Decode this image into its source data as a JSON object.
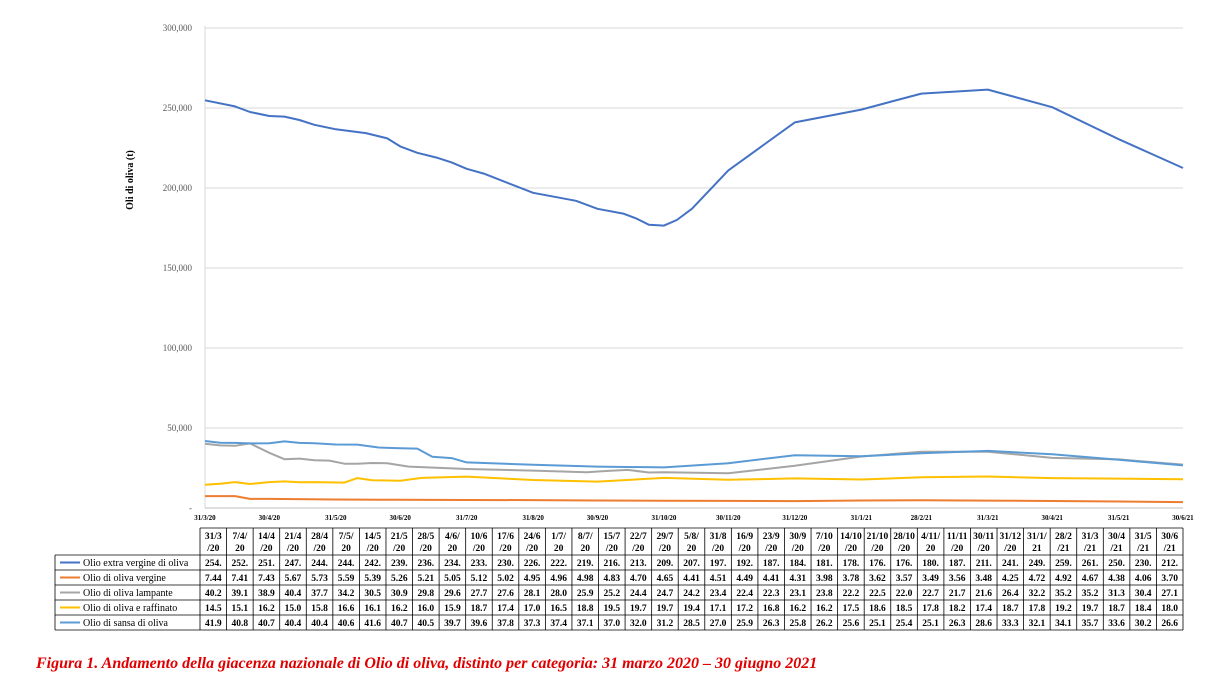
{
  "chart_data": {
    "type": "line",
    "ylabel": "Oli di oliva (t)",
    "ylim": [
      0,
      300000
    ],
    "yticks": [
      "-",
      "50,000",
      "100,000",
      "150,000",
      "200,000",
      "250,000",
      "300,000"
    ],
    "grid": true,
    "legend_placement": "data-table-below",
    "axis_ticks": [
      "31/3/20",
      "30/4/20",
      "31/5/20",
      "30/6/20",
      "31/7/20",
      "31/8/20",
      "30/9/20",
      "31/10/20",
      "30/11/20",
      "31/12/20",
      "31/1/21",
      "28/2/21",
      "31/3/21",
      "30/4/21",
      "31/5/21",
      "30/6/21"
    ],
    "table_headers": [
      [
        "31/3",
        "/20"
      ],
      [
        "7/4/",
        "20"
      ],
      [
        "14/4",
        "/20"
      ],
      [
        "21/4",
        "/20"
      ],
      [
        "28/4",
        "/20"
      ],
      [
        "7/5/",
        "20"
      ],
      [
        "14/5",
        "/20"
      ],
      [
        "21/5",
        "/20"
      ],
      [
        "28/5",
        "/20"
      ],
      [
        "4/6/",
        "20"
      ],
      [
        "10/6",
        "/20"
      ],
      [
        "17/6",
        "/20"
      ],
      [
        "24/6",
        "/20"
      ],
      [
        "1/7/",
        "20"
      ],
      [
        "8/7/",
        "20"
      ],
      [
        "15/7",
        "/20"
      ],
      [
        "22/7",
        "/20"
      ],
      [
        "29/7",
        "/20"
      ],
      [
        "5/8/",
        "20"
      ],
      [
        "31/8",
        "/20"
      ],
      [
        "16/9",
        "/20"
      ],
      [
        "23/9",
        "/20"
      ],
      [
        "30/9",
        "/20"
      ],
      [
        "7/10",
        "/20"
      ],
      [
        "14/10",
        "/20"
      ],
      [
        "21/10",
        "/20"
      ],
      [
        "28/10",
        "/20"
      ],
      [
        "4/11/",
        "20"
      ],
      [
        "11/11",
        "/20"
      ],
      [
        "30/11",
        "/20"
      ],
      [
        "31/12",
        "/20"
      ],
      [
        "31/1/",
        "21"
      ],
      [
        "28/2",
        "/21"
      ],
      [
        "31/3",
        "/21"
      ],
      [
        "30/4",
        "/21"
      ],
      [
        "31/5",
        "/21"
      ],
      [
        "30/6",
        "/21"
      ]
    ],
    "series": [
      {
        "name": "Olio extra vergine di oliva",
        "color": "#4472c4",
        "labels": [
          "254.",
          "252.",
          "251.",
          "247.",
          "244.",
          "244.",
          "242.",
          "239.",
          "236.",
          "234.",
          "233.",
          "230.",
          "226.",
          "222.",
          "219.",
          "216.",
          "213.",
          "209.",
          "207.",
          "197.",
          "192.",
          "187.",
          "184.",
          "181.",
          "178.",
          "176.",
          "176.",
          "180.",
          "187.",
          "211.",
          "241.",
          "249.",
          "259.",
          "261.",
          "250.",
          "230.",
          "212."
        ],
        "plot_points": [
          [
            "31/3/20",
            254800
          ],
          [
            "14/4/20",
            251000
          ],
          [
            "21/4/20",
            247500
          ],
          [
            "30/4/20",
            245000
          ],
          [
            "7/5/20",
            244600
          ],
          [
            "14/5/20",
            242500
          ],
          [
            "21/5/20",
            239500
          ],
          [
            "31/5/20",
            236700
          ],
          [
            "14/6/20",
            234300
          ],
          [
            "24/6/20",
            231000
          ],
          [
            "30/6/20",
            226000
          ],
          [
            "8/7/20",
            222000
          ],
          [
            "17/7/20",
            219000
          ],
          [
            "24/7/20",
            216000
          ],
          [
            "31/7/20",
            212000
          ],
          [
            "8/8/20",
            209000
          ],
          [
            "31/8/20",
            197000
          ],
          [
            "20/9/20",
            192000
          ],
          [
            "30/9/20",
            187000
          ],
          [
            "12/10/20",
            184000
          ],
          [
            "18/10/20",
            181000
          ],
          [
            "24/10/20",
            177000
          ],
          [
            "31/10/20",
            176500
          ],
          [
            "6/11/20",
            180000
          ],
          [
            "13/11/20",
            187000
          ],
          [
            "30/11/20",
            211000
          ],
          [
            "31/12/20",
            241000
          ],
          [
            "31/1/21",
            249000
          ],
          [
            "28/2/21",
            259000
          ],
          [
            "31/3/21",
            261500
          ],
          [
            "30/4/21",
            250500
          ],
          [
            "31/5/21",
            230500
          ],
          [
            "30/6/21",
            212500
          ]
        ]
      },
      {
        "name": "Olio di oliva vergine",
        "color": "#ed7d31",
        "labels": [
          "7.44",
          "7.41",
          "7.43",
          "5.67",
          "5.73",
          "5.59",
          "5.39",
          "5.26",
          "5.21",
          "5.05",
          "5.12",
          "5.02",
          "4.95",
          "4.96",
          "4.98",
          "4.83",
          "4.70",
          "4.65",
          "4.41",
          "4.51",
          "4.49",
          "4.41",
          "4.31",
          "3.98",
          "3.78",
          "3.62",
          "3.57",
          "3.49",
          "3.56",
          "3.48",
          "4.25",
          "4.72",
          "4.92",
          "4.67",
          "4.38",
          "4.06",
          "3.70"
        ],
        "plot_points": [
          [
            "31/3/20",
            7440
          ],
          [
            "14/4/20",
            7430
          ],
          [
            "21/4/20",
            5670
          ],
          [
            "30/4/20",
            5700
          ],
          [
            "31/5/20",
            5300
          ],
          [
            "30/6/20",
            5100
          ],
          [
            "31/7/20",
            5000
          ],
          [
            "31/8/20",
            4950
          ],
          [
            "30/9/20",
            4700
          ],
          [
            "31/10/20",
            4500
          ],
          [
            "30/11/20",
            4450
          ],
          [
            "31/12/20",
            4300
          ],
          [
            "31/1/21",
            4700
          ],
          [
            "28/2/21",
            4900
          ],
          [
            "31/3/21",
            4650
          ],
          [
            "30/4/21",
            4350
          ],
          [
            "31/5/21",
            4050
          ],
          [
            "30/6/21",
            3700
          ]
        ]
      },
      {
        "name": "Olio di oliva lampante",
        "color": "#a5a5a5",
        "labels": [
          "40.2",
          "39.1",
          "38.9",
          "40.4",
          "37.7",
          "34.2",
          "30.5",
          "30.9",
          "29.8",
          "29.6",
          "27.7",
          "27.6",
          "28.1",
          "28.0",
          "25.9",
          "25.2",
          "24.4",
          "24.7",
          "24.2",
          "23.4",
          "22.4",
          "22.3",
          "23.1",
          "23.8",
          "22.2",
          "22.5",
          "22.0",
          "22.7",
          "21.7",
          "21.6",
          "26.4",
          "32.2",
          "35.2",
          "35.2",
          "31.3",
          "30.4",
          "27.1"
        ],
        "plot_points": [
          [
            "31/3/20",
            40200
          ],
          [
            "7/4/20",
            39100
          ],
          [
            "14/4/20",
            38900
          ],
          [
            "21/4/20",
            40400
          ],
          [
            "30/4/20",
            34500
          ],
          [
            "7/5/20",
            30500
          ],
          [
            "14/5/20",
            30900
          ],
          [
            "21/5/20",
            29800
          ],
          [
            "28/5/20",
            29600
          ],
          [
            "4/6/20",
            27700
          ],
          [
            "10/6/20",
            27600
          ],
          [
            "17/6/20",
            28100
          ],
          [
            "24/6/20",
            28000
          ],
          [
            "4/7/20",
            25900
          ],
          [
            "17/7/20",
            25200
          ],
          [
            "31/7/20",
            24400
          ],
          [
            "31/8/20",
            23400
          ],
          [
            "25/9/20",
            22300
          ],
          [
            "4/10/20",
            23100
          ],
          [
            "14/10/20",
            23800
          ],
          [
            "24/10/20",
            22200
          ],
          [
            "31/10/20",
            22300
          ],
          [
            "30/11/20",
            21700
          ],
          [
            "31/12/20",
            26400
          ],
          [
            "31/1/21",
            32200
          ],
          [
            "28/2/21",
            35200
          ],
          [
            "31/3/21",
            35200
          ],
          [
            "30/4/21",
            31300
          ],
          [
            "31/5/21",
            30400
          ],
          [
            "30/6/21",
            27100
          ]
        ]
      },
      {
        "name": "Olio di oliva e raffinato",
        "color": "#ffc000",
        "labels": [
          "14.5",
          "15.1",
          "16.2",
          "15.0",
          "15.8",
          "16.6",
          "16.1",
          "16.2",
          "16.0",
          "15.9",
          "18.7",
          "17.4",
          "17.0",
          "16.5",
          "18.8",
          "19.5",
          "19.7",
          "19.7",
          "19.4",
          "17.1",
          "17.2",
          "16.8",
          "16.2",
          "16.2",
          "17.5",
          "18.6",
          "18.5",
          "17.8",
          "18.2",
          "17.4",
          "18.7",
          "17.8",
          "19.2",
          "19.7",
          "18.7",
          "18.4",
          "18.0"
        ],
        "plot_points": [
          [
            "31/3/20",
            14500
          ],
          [
            "7/4/20",
            15100
          ],
          [
            "14/4/20",
            16200
          ],
          [
            "21/4/20",
            15000
          ],
          [
            "30/4/20",
            16200
          ],
          [
            "7/5/20",
            16600
          ],
          [
            "14/5/20",
            16100
          ],
          [
            "21/5/20",
            16200
          ],
          [
            "28/5/20",
            16000
          ],
          [
            "4/6/20",
            15900
          ],
          [
            "10/6/20",
            18700
          ],
          [
            "17/6/20",
            17400
          ],
          [
            "30/6/20",
            17000
          ],
          [
            "10/7/20",
            18800
          ],
          [
            "31/7/20",
            19600
          ],
          [
            "31/8/20",
            17500
          ],
          [
            "30/9/20",
            16500
          ],
          [
            "31/10/20",
            18800
          ],
          [
            "30/11/20",
            17600
          ],
          [
            "31/12/20",
            18500
          ],
          [
            "31/1/21",
            17800
          ],
          [
            "28/2/21",
            19200
          ],
          [
            "31/3/21",
            19700
          ],
          [
            "30/4/21",
            18700
          ],
          [
            "31/5/21",
            18400
          ],
          [
            "30/6/21",
            18000
          ]
        ]
      },
      {
        "name": "Olio di sansa di oliva",
        "color": "#5b9bd5",
        "labels": [
          "41.9",
          "40.8",
          "40.7",
          "40.4",
          "40.4",
          "40.6",
          "41.6",
          "40.7",
          "40.5",
          "39.7",
          "39.6",
          "37.8",
          "37.3",
          "37.4",
          "37.1",
          "37.0",
          "32.0",
          "31.2",
          "28.5",
          "27.0",
          "25.9",
          "26.3",
          "25.8",
          "26.2",
          "25.6",
          "25.1",
          "25.4",
          "25.1",
          "26.3",
          "28.6",
          "33.3",
          "32.1",
          "34.1",
          "35.7",
          "33.6",
          "30.2",
          "26.6"
        ],
        "plot_points": [
          [
            "31/3/20",
            41900
          ],
          [
            "7/4/20",
            40800
          ],
          [
            "14/4/20",
            40700
          ],
          [
            "21/4/20",
            40400
          ],
          [
            "30/4/20",
            40500
          ],
          [
            "7/5/20",
            41600
          ],
          [
            "14/5/20",
            40700
          ],
          [
            "21/5/20",
            40500
          ],
          [
            "31/5/20",
            39700
          ],
          [
            "10/6/20",
            39600
          ],
          [
            "20/6/20",
            37800
          ],
          [
            "30/6/20",
            37300
          ],
          [
            "8/7/20",
            37100
          ],
          [
            "15/7/20",
            32000
          ],
          [
            "24/7/20",
            31200
          ],
          [
            "31/7/20",
            28500
          ],
          [
            "31/8/20",
            27000
          ],
          [
            "30/9/20",
            25900
          ],
          [
            "31/10/20",
            25400
          ],
          [
            "30/11/20",
            28000
          ],
          [
            "31/12/20",
            33000
          ],
          [
            "31/1/21",
            32300
          ],
          [
            "28/2/21",
            34200
          ],
          [
            "31/3/21",
            35700
          ],
          [
            "30/4/21",
            33600
          ],
          [
            "31/5/21",
            30200
          ],
          [
            "30/6/21",
            26600
          ]
        ]
      }
    ]
  },
  "caption": "Figura 1. Andamento della giacenza nazionale di Olio di oliva, distinto per categoria: 31 marzo 2020 – 30 giugno 2021"
}
